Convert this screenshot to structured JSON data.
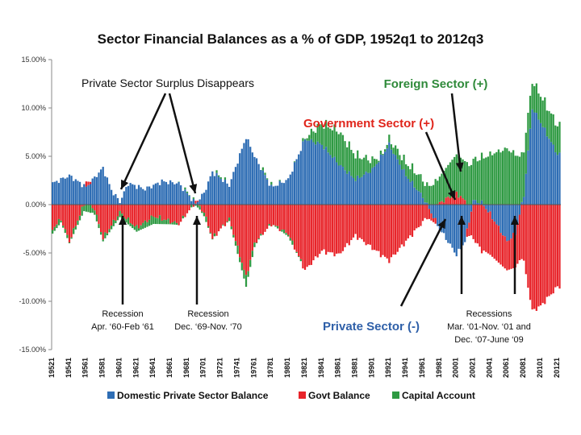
{
  "chart_data": {
    "type": "bar",
    "title": "Sector Financial Balances as a % of GDP, 1952q1 to 2012q3",
    "xlabel": "",
    "ylabel": "",
    "ylim": [
      -15,
      15
    ],
    "yticks": [
      "15.00%",
      "10.00%",
      "5.00%",
      "0.00%",
      "-5.00%",
      "-10.00%",
      "-15.00%"
    ],
    "xticks": [
      "19521",
      "19541",
      "19561",
      "19581",
      "19601",
      "19621",
      "19641",
      "19661",
      "19681",
      "19701",
      "19721",
      "19741",
      "19761",
      "19781",
      "19801",
      "19821",
      "19841",
      "19861",
      "19881",
      "19901",
      "19921",
      "19941",
      "19961",
      "19981",
      "20001",
      "20021",
      "20041",
      "20061",
      "20081",
      "20101",
      "20121"
    ],
    "x_start_year": 1952,
    "x_end_year": 2012.5,
    "legend_position": "bottom",
    "series": [
      {
        "name": "Domestic Private Sector Balance",
        "color": "#2e6db4",
        "keyframes": [
          [
            1952,
            2.2
          ],
          [
            1954,
            3.0
          ],
          [
            1956,
            1.8
          ],
          [
            1958,
            3.8
          ],
          [
            1959,
            1.5
          ],
          [
            1960,
            0.3
          ],
          [
            1961,
            2.2
          ],
          [
            1963,
            1.6
          ],
          [
            1965,
            2.4
          ],
          [
            1967,
            2.2
          ],
          [
            1969,
            0.1
          ],
          [
            1970,
            1.2
          ],
          [
            1971,
            3.4
          ],
          [
            1973,
            2.0
          ],
          [
            1975,
            7.0
          ],
          [
            1976,
            5.0
          ],
          [
            1978,
            1.8
          ],
          [
            1980,
            2.6
          ],
          [
            1982,
            6.8
          ],
          [
            1984,
            6.2
          ],
          [
            1986,
            4.2
          ],
          [
            1988,
            2.6
          ],
          [
            1990,
            3.6
          ],
          [
            1992,
            6.2
          ],
          [
            1994,
            3.0
          ],
          [
            1996,
            0.8
          ],
          [
            1998,
            -2.5
          ],
          [
            2000,
            -5.2
          ],
          [
            2001,
            -3.8
          ],
          [
            2002,
            0.4
          ],
          [
            2003,
            0.2
          ],
          [
            2004,
            -1.0
          ],
          [
            2006,
            -3.8
          ],
          [
            2007,
            -3.0
          ],
          [
            2008,
            1.0
          ],
          [
            2009,
            10.0
          ],
          [
            2010,
            8.5
          ],
          [
            2012,
            5.2
          ]
        ]
      },
      {
        "name": "Govt Balance",
        "color": "#e8242a",
        "keyframes": [
          [
            1952,
            -2.5
          ],
          [
            1953,
            -1.5
          ],
          [
            1954,
            -3.8
          ],
          [
            1956,
            0.6
          ],
          [
            1957,
            -0.5
          ],
          [
            1958,
            -3.5
          ],
          [
            1960,
            -0.8
          ],
          [
            1962,
            -2.4
          ],
          [
            1964,
            -1.2
          ],
          [
            1967,
            -2.0
          ],
          [
            1969,
            0.3
          ],
          [
            1970,
            -0.8
          ],
          [
            1971,
            -3.5
          ],
          [
            1973,
            -1.5
          ],
          [
            1975,
            -7.5
          ],
          [
            1976,
            -4.0
          ],
          [
            1978,
            -2.0
          ],
          [
            1980,
            -3.0
          ],
          [
            1982,
            -6.8
          ],
          [
            1984,
            -4.8
          ],
          [
            1986,
            -5.2
          ],
          [
            1988,
            -3.2
          ],
          [
            1990,
            -4.5
          ],
          [
            1992,
            -5.8
          ],
          [
            1994,
            -3.8
          ],
          [
            1996,
            -1.8
          ],
          [
            1998,
            0.2
          ],
          [
            2000,
            1.2
          ],
          [
            2001,
            0.4
          ],
          [
            2002,
            -3.5
          ],
          [
            2003,
            -4.8
          ],
          [
            2004,
            -4.2
          ],
          [
            2006,
            -3.0
          ],
          [
            2007,
            -3.5
          ],
          [
            2008,
            -6.0
          ],
          [
            2009,
            -11.0
          ],
          [
            2010,
            -10.5
          ],
          [
            2012,
            -8.5
          ]
        ]
      },
      {
        "name": "Capital Account",
        "color": "#2f9a43",
        "keyframes": [
          [
            1952,
            -0.5
          ],
          [
            1954,
            -0.2
          ],
          [
            1956,
            -0.8
          ],
          [
            1958,
            -0.3
          ],
          [
            1960,
            -0.5
          ],
          [
            1962,
            -0.4
          ],
          [
            1964,
            -0.8
          ],
          [
            1966,
            -0.3
          ],
          [
            1968,
            0.1
          ],
          [
            1970,
            -0.4
          ],
          [
            1972,
            0.2
          ],
          [
            1974,
            -0.6
          ],
          [
            1975,
            -1.0
          ],
          [
            1977,
            0.2
          ],
          [
            1980,
            -0.3
          ],
          [
            1982,
            0.1
          ],
          [
            1984,
            2.2
          ],
          [
            1986,
            3.4
          ],
          [
            1988,
            2.5
          ],
          [
            1990,
            1.0
          ],
          [
            1991,
            0.1
          ],
          [
            1993,
            1.0
          ],
          [
            1995,
            1.6
          ],
          [
            1997,
            2.0
          ],
          [
            1999,
            3.4
          ],
          [
            2000,
            4.0
          ],
          [
            2002,
            4.2
          ],
          [
            2004,
            5.2
          ],
          [
            2006,
            5.8
          ],
          [
            2007,
            5.2
          ],
          [
            2008,
            4.8
          ],
          [
            2009,
            2.8
          ],
          [
            2010,
            2.8
          ],
          [
            2012,
            3.0
          ]
        ]
      }
    ],
    "annotations": [
      {
        "text": "Private Sector Surplus Disappears",
        "color": "#111111"
      },
      {
        "text": "Foreign Sector (+)",
        "color": "#2f8a3a"
      },
      {
        "text": "Government Sector (+)",
        "color": "#e0251b"
      },
      {
        "text": "Private Sector (-)",
        "color": "#2e5fa8"
      },
      {
        "lines": [
          "Recession",
          "Apr. ‘60-Feb ‘61"
        ]
      },
      {
        "lines": [
          "Recession",
          "Dec. ‘69-Nov. ‘70"
        ]
      },
      {
        "lines": [
          "Recessions",
          "Mar. ‘01-Nov. ‘01 and",
          "Dec. ‘07-June ‘09"
        ]
      }
    ]
  }
}
